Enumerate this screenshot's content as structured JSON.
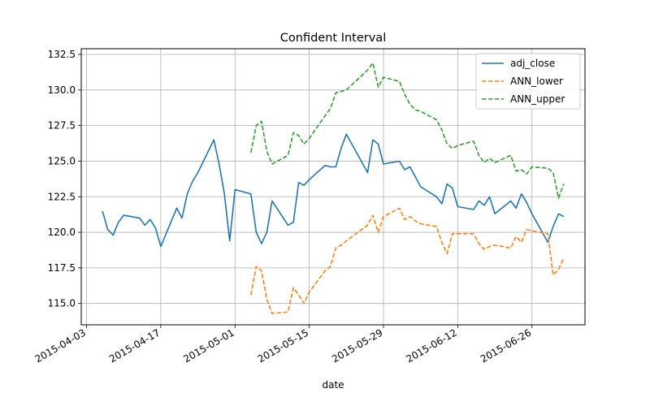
{
  "chart_data": {
    "type": "line",
    "title": "Confident Interval",
    "xlabel": "date",
    "ylabel": "",
    "xlim": [
      "2015-04-02",
      "2015-07-06"
    ],
    "ylim": [
      113.5,
      132.9
    ],
    "x_ticks": [
      "2015-04-03",
      "2015-04-17",
      "2015-05-01",
      "2015-05-15",
      "2015-05-29",
      "2015-06-12",
      "2015-06-26"
    ],
    "y_ticks": [
      "115.0",
      "117.5",
      "120.0",
      "122.5",
      "125.0",
      "127.5",
      "130.0",
      "132.5"
    ],
    "grid": true,
    "legend_position": "upper right",
    "series": [
      {
        "name": "adj_close",
        "color": "#1f77b4",
        "style": "solid",
        "x": [
          "2015-04-06",
          "2015-04-07",
          "2015-04-08",
          "2015-04-09",
          "2015-04-10",
          "2015-04-13",
          "2015-04-14",
          "2015-04-15",
          "2015-04-16",
          "2015-04-17",
          "2015-04-20",
          "2015-04-21",
          "2015-04-22",
          "2015-04-23",
          "2015-04-24",
          "2015-04-27",
          "2015-04-28",
          "2015-04-29",
          "2015-04-30",
          "2015-05-01",
          "2015-05-04",
          "2015-05-05",
          "2015-05-06",
          "2015-05-07",
          "2015-05-08",
          "2015-05-11",
          "2015-05-12",
          "2015-05-13",
          "2015-05-14",
          "2015-05-15",
          "2015-05-18",
          "2015-05-19",
          "2015-05-20",
          "2015-05-21",
          "2015-05-22",
          "2015-05-26",
          "2015-05-27",
          "2015-05-28",
          "2015-05-29",
          "2015-06-01",
          "2015-06-02",
          "2015-06-03",
          "2015-06-04",
          "2015-06-05",
          "2015-06-08",
          "2015-06-09",
          "2015-06-10",
          "2015-06-11",
          "2015-06-12",
          "2015-06-15",
          "2015-06-16",
          "2015-06-17",
          "2015-06-18",
          "2015-06-19",
          "2015-06-22",
          "2015-06-23",
          "2015-06-24",
          "2015-06-25",
          "2015-06-26",
          "2015-06-29",
          "2015-06-30",
          "2015-07-01",
          "2015-07-02"
        ],
        "values": [
          121.5,
          120.2,
          119.8,
          120.7,
          121.2,
          121.0,
          120.5,
          120.9,
          120.3,
          119.0,
          121.7,
          121.0,
          122.7,
          123.6,
          124.2,
          126.5,
          124.8,
          122.7,
          119.4,
          123.0,
          122.7,
          120.0,
          119.2,
          120.0,
          122.2,
          120.5,
          120.7,
          123.5,
          123.3,
          123.7,
          124.7,
          124.6,
          124.6,
          125.9,
          126.9,
          124.2,
          126.5,
          126.2,
          124.8,
          125.0,
          124.4,
          124.6,
          123.9,
          123.2,
          122.5,
          122.0,
          123.4,
          123.1,
          121.8,
          121.6,
          122.2,
          121.9,
          122.5,
          121.3,
          122.2,
          121.7,
          122.7,
          122.1,
          121.3,
          119.3,
          120.4,
          121.3,
          121.1
        ]
      },
      {
        "name": "ANN_lower",
        "color": "#ff7f0e",
        "style": "dashed",
        "x": [
          "2015-05-04",
          "2015-05-05",
          "2015-05-06",
          "2015-05-07",
          "2015-05-08",
          "2015-05-11",
          "2015-05-12",
          "2015-05-13",
          "2015-05-14",
          "2015-05-15",
          "2015-05-18",
          "2015-05-19",
          "2015-05-20",
          "2015-05-21",
          "2015-05-22",
          "2015-05-26",
          "2015-05-27",
          "2015-05-28",
          "2015-05-29",
          "2015-06-01",
          "2015-06-02",
          "2015-06-03",
          "2015-06-04",
          "2015-06-05",
          "2015-06-08",
          "2015-06-09",
          "2015-06-10",
          "2015-06-11",
          "2015-06-12",
          "2015-06-15",
          "2015-06-16",
          "2015-06-17",
          "2015-06-18",
          "2015-06-19",
          "2015-06-22",
          "2015-06-23",
          "2015-06-24",
          "2015-06-25",
          "2015-06-26",
          "2015-06-29",
          "2015-06-30",
          "2015-07-01",
          "2015-07-02"
        ],
        "values": [
          115.6,
          117.6,
          117.3,
          115.3,
          114.3,
          114.4,
          116.1,
          115.6,
          115.0,
          115.8,
          117.3,
          117.6,
          118.9,
          119.1,
          119.4,
          120.5,
          121.2,
          120.0,
          121.1,
          121.7,
          120.9,
          121.1,
          120.8,
          120.6,
          120.4,
          119.3,
          118.5,
          119.9,
          119.9,
          119.9,
          119.2,
          118.8,
          119.0,
          119.1,
          118.9,
          119.7,
          119.3,
          120.2,
          120.1,
          119.9,
          117.0,
          117.4,
          118.2
        ]
      },
      {
        "name": "ANN_upper",
        "color": "#2ca02c",
        "style": "dashed",
        "x": [
          "2015-05-04",
          "2015-05-05",
          "2015-05-06",
          "2015-05-07",
          "2015-05-08",
          "2015-05-11",
          "2015-05-12",
          "2015-05-13",
          "2015-05-14",
          "2015-05-15",
          "2015-05-18",
          "2015-05-19",
          "2015-05-20",
          "2015-05-21",
          "2015-05-22",
          "2015-05-26",
          "2015-05-27",
          "2015-05-28",
          "2015-05-29",
          "2015-06-01",
          "2015-06-02",
          "2015-06-03",
          "2015-06-04",
          "2015-06-05",
          "2015-06-08",
          "2015-06-09",
          "2015-06-10",
          "2015-06-11",
          "2015-06-12",
          "2015-06-15",
          "2015-06-16",
          "2015-06-17",
          "2015-06-18",
          "2015-06-19",
          "2015-06-22",
          "2015-06-23",
          "2015-06-24",
          "2015-06-25",
          "2015-06-26",
          "2015-06-29",
          "2015-06-30",
          "2015-07-01",
          "2015-07-02"
        ],
        "values": [
          125.6,
          127.5,
          127.8,
          125.7,
          124.8,
          125.4,
          127.0,
          126.8,
          126.2,
          126.6,
          128.2,
          128.7,
          129.8,
          129.9,
          130.0,
          131.4,
          131.9,
          130.2,
          130.9,
          130.6,
          129.7,
          129.0,
          128.6,
          128.5,
          127.9,
          127.2,
          126.2,
          125.9,
          126.1,
          126.4,
          125.4,
          124.9,
          125.2,
          124.9,
          125.4,
          124.3,
          124.4,
          124.1,
          124.6,
          124.5,
          124.2,
          122.4,
          123.4
        ]
      }
    ]
  }
}
